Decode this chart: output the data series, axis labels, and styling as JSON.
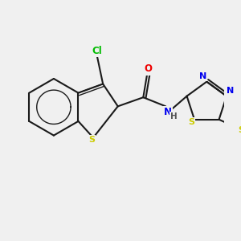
{
  "background_color": "#f0f0f0",
  "bond_color": "#1a1a1a",
  "lw": 1.5,
  "atom_colors": {
    "Cl": "#00bb00",
    "S": "#cccc00",
    "O": "#ee0000",
    "N": "#0000ee",
    "H": "#555555",
    "C": "#1a1a1a"
  },
  "figsize": [
    3.0,
    3.0
  ],
  "dpi": 100,
  "xlim": [
    0,
    300
  ],
  "ylim": [
    0,
    300
  ]
}
